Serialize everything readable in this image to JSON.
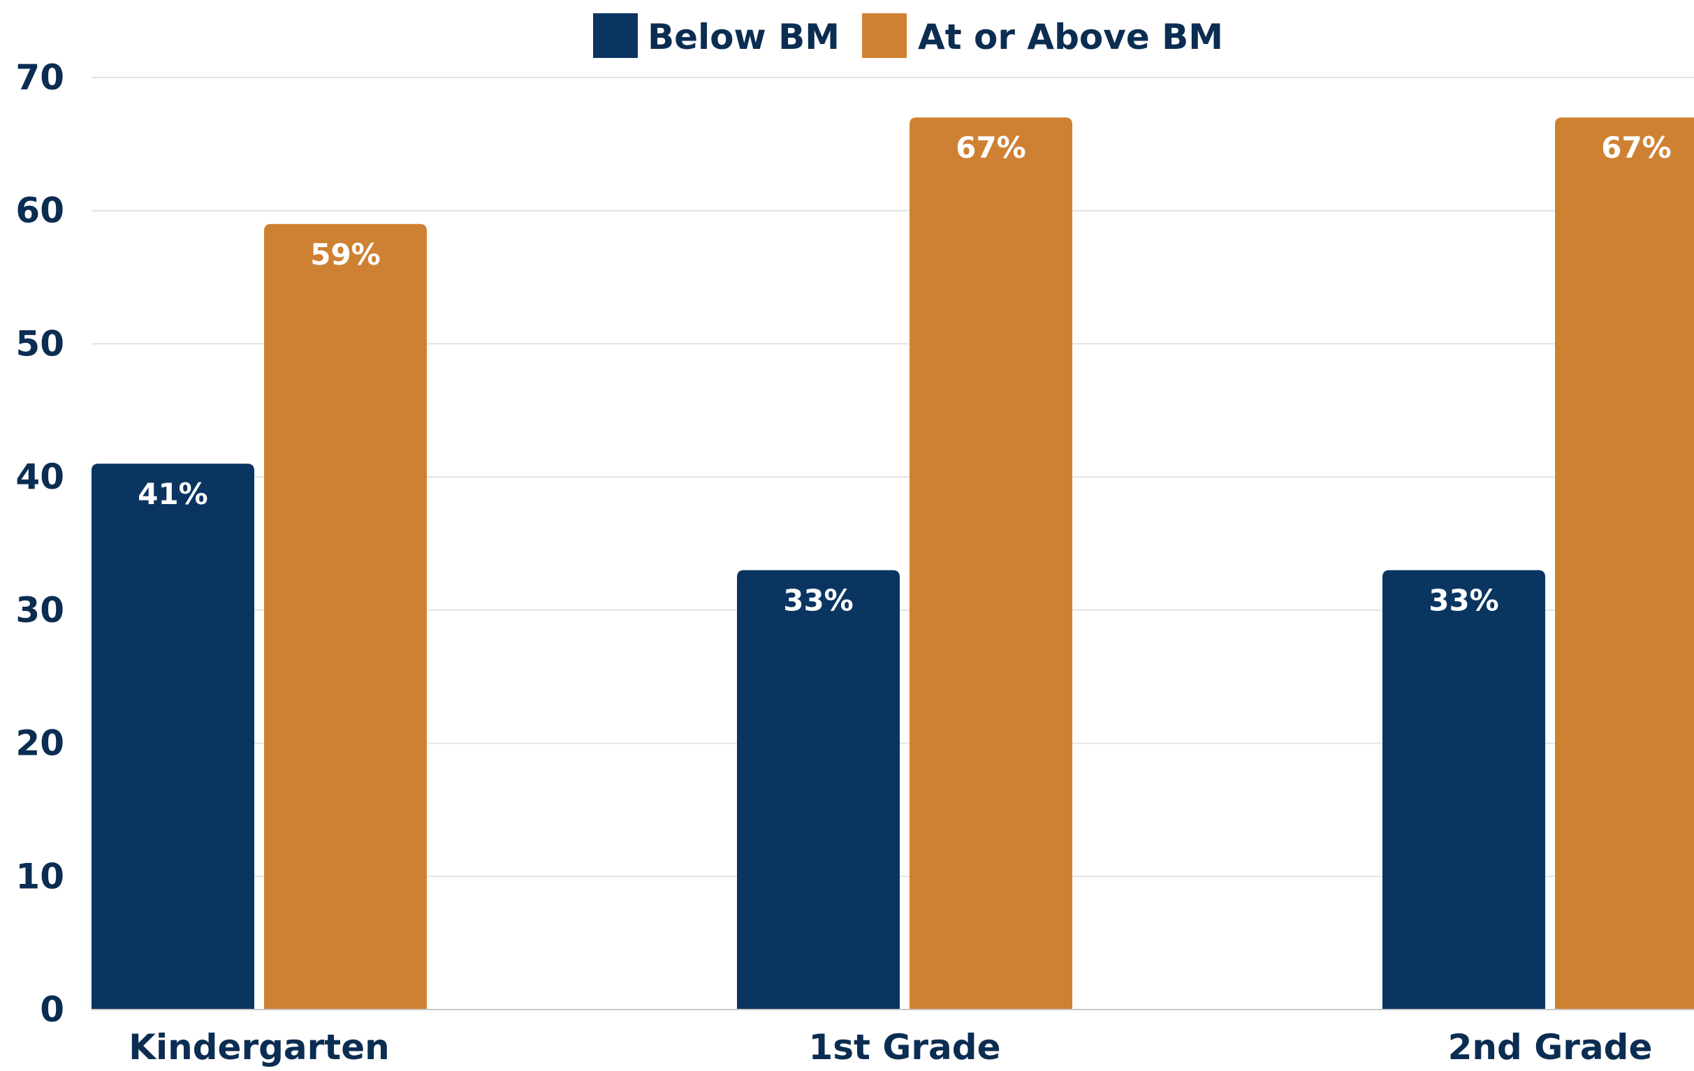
{
  "chart_data": {
    "type": "bar",
    "categories": [
      "Kindergarten",
      "1st Grade",
      "2nd Grade"
    ],
    "series": [
      {
        "name": "Below BM",
        "values": [
          41,
          33,
          33
        ],
        "labels": [
          "41%",
          "33%",
          "33%"
        ],
        "color": "#0b3561"
      },
      {
        "name": "At or Above BM",
        "values": [
          59,
          67,
          67
        ],
        "labels": [
          "59%",
          "67%",
          "67%"
        ],
        "color": "#cf8133"
      }
    ],
    "ylim": [
      0,
      70
    ],
    "yticks": [
      0,
      10,
      20,
      30,
      40,
      50,
      60,
      70
    ],
    "grid": true,
    "legend": "top-center",
    "text_color": "#0b2d52",
    "grid_color": "#e3e3e3"
  }
}
